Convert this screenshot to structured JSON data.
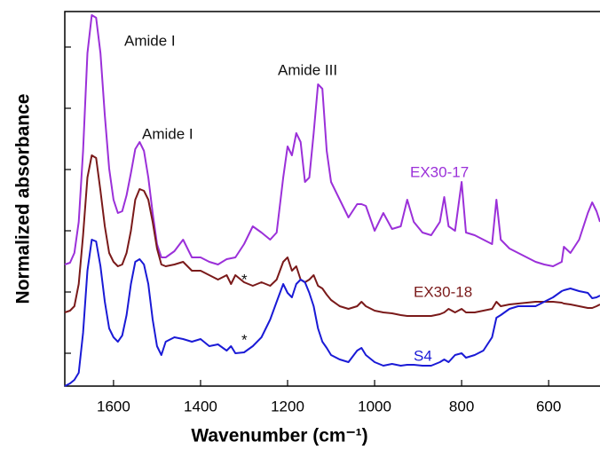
{
  "chart_data": {
    "type": "line",
    "xlabel": "Wavenumber (cm⁻¹)",
    "ylabel": "Normalized absorbance",
    "xlim": [
      1712,
      482
    ],
    "xticks": [
      1600,
      1400,
      1200,
      1000,
      800,
      600
    ],
    "ylim": [
      0,
      4.22
    ],
    "yticks": [
      0.37,
      1.06,
      1.75,
      2.44,
      3.13,
      3.82
    ],
    "ytick_labels": false,
    "x": [
      1712,
      1700,
      1690,
      1680,
      1670,
      1660,
      1650,
      1640,
      1630,
      1620,
      1610,
      1600,
      1590,
      1580,
      1570,
      1560,
      1550,
      1540,
      1530,
      1520,
      1510,
      1500,
      1490,
      1480,
      1460,
      1440,
      1420,
      1400,
      1380,
      1360,
      1340,
      1330,
      1320,
      1300,
      1280,
      1260,
      1240,
      1225,
      1210,
      1200,
      1190,
      1180,
      1170,
      1160,
      1150,
      1140,
      1130,
      1120,
      1110,
      1100,
      1080,
      1060,
      1040,
      1030,
      1020,
      1000,
      980,
      960,
      940,
      925,
      910,
      890,
      870,
      850,
      840,
      830,
      815,
      800,
      790,
      770,
      750,
      730,
      720,
      710,
      690,
      670,
      650,
      630,
      610,
      590,
      570,
      565,
      550,
      530,
      510,
      500,
      490,
      482
    ],
    "series": [
      {
        "name": "EX30-17",
        "color": "#9b30d9",
        "values": [
          1.37,
          1.39,
          1.5,
          1.85,
          2.65,
          3.75,
          4.18,
          4.15,
          3.75,
          3.05,
          2.45,
          2.1,
          1.95,
          1.97,
          2.15,
          2.4,
          2.67,
          2.75,
          2.65,
          2.35,
          1.95,
          1.6,
          1.45,
          1.45,
          1.52,
          1.65,
          1.45,
          1.45,
          1.4,
          1.37,
          1.43,
          1.44,
          1.45,
          1.6,
          1.8,
          1.73,
          1.65,
          1.73,
          2.35,
          2.7,
          2.6,
          2.85,
          2.75,
          2.3,
          2.35,
          2.85,
          3.4,
          3.35,
          2.65,
          2.3,
          2.1,
          1.9,
          2.05,
          2.05,
          2.03,
          1.75,
          1.95,
          1.77,
          1.8,
          2.1,
          1.85,
          1.73,
          1.7,
          1.85,
          2.13,
          1.8,
          1.75,
          2.3,
          1.73,
          1.7,
          1.65,
          1.6,
          2.1,
          1.65,
          1.55,
          1.5,
          1.45,
          1.4,
          1.37,
          1.35,
          1.4,
          1.57,
          1.5,
          1.65,
          1.95,
          2.07,
          1.97,
          1.85
        ]
      },
      {
        "name": "EX30-18",
        "color": "#7a1a1a",
        "values": [
          0.83,
          0.85,
          0.9,
          1.15,
          1.7,
          2.35,
          2.6,
          2.57,
          2.2,
          1.8,
          1.5,
          1.4,
          1.35,
          1.37,
          1.5,
          1.75,
          2.1,
          2.22,
          2.2,
          2.1,
          1.85,
          1.55,
          1.37,
          1.35,
          1.37,
          1.4,
          1.3,
          1.3,
          1.25,
          1.2,
          1.25,
          1.15,
          1.25,
          1.17,
          1.13,
          1.17,
          1.13,
          1.2,
          1.4,
          1.45,
          1.3,
          1.35,
          1.2,
          1.17,
          1.2,
          1.25,
          1.13,
          1.1,
          1.03,
          0.97,
          0.9,
          0.87,
          0.9,
          0.95,
          0.9,
          0.85,
          0.83,
          0.82,
          0.8,
          0.79,
          0.79,
          0.79,
          0.79,
          0.81,
          0.83,
          0.87,
          0.83,
          0.87,
          0.83,
          0.83,
          0.85,
          0.87,
          0.95,
          0.9,
          0.92,
          0.93,
          0.94,
          0.95,
          0.95,
          0.95,
          0.94,
          0.93,
          0.92,
          0.9,
          0.88,
          0.88,
          0.9,
          0.92
        ]
      },
      {
        "name": "S4",
        "color": "#1a1ad6",
        "values": [
          0.0,
          0.03,
          0.07,
          0.15,
          0.6,
          1.3,
          1.65,
          1.63,
          1.35,
          0.95,
          0.65,
          0.55,
          0.5,
          0.57,
          0.8,
          1.15,
          1.4,
          1.43,
          1.37,
          1.15,
          0.75,
          0.45,
          0.35,
          0.5,
          0.55,
          0.53,
          0.5,
          0.53,
          0.45,
          0.47,
          0.4,
          0.45,
          0.37,
          0.38,
          0.45,
          0.55,
          0.75,
          0.95,
          1.15,
          1.05,
          1.0,
          1.15,
          1.2,
          1.17,
          1.05,
          0.9,
          0.65,
          0.5,
          0.43,
          0.35,
          0.3,
          0.27,
          0.4,
          0.43,
          0.35,
          0.27,
          0.23,
          0.25,
          0.23,
          0.24,
          0.24,
          0.23,
          0.23,
          0.27,
          0.3,
          0.27,
          0.35,
          0.37,
          0.32,
          0.35,
          0.4,
          0.55,
          0.77,
          0.8,
          0.87,
          0.9,
          0.9,
          0.9,
          0.95,
          1.0,
          1.07,
          1.08,
          1.1,
          1.07,
          1.05,
          0.99,
          1.0,
          1.02
        ]
      }
    ],
    "annotations": [
      "Amide I",
      "Amide I",
      "Amide III",
      "*",
      "*"
    ]
  }
}
